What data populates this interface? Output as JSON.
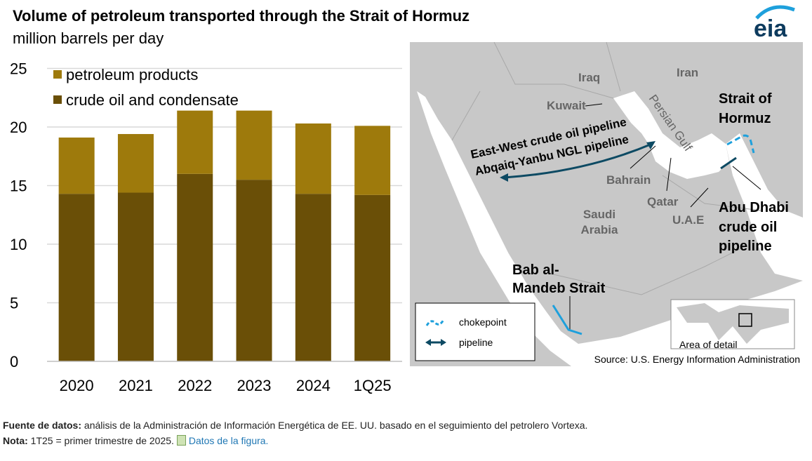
{
  "title": "Volume of petroleum transported through the Strait of Hormuz",
  "subtitle": "million barrels per day",
  "logo_text": "eia",
  "chart_data": {
    "type": "bar",
    "stacked": true,
    "categories": [
      "2020",
      "2021",
      "2022",
      "2023",
      "2024",
      "1Q25"
    ],
    "series": [
      {
        "name": "crude oil and condensate",
        "color": "#6a4f07",
        "values": [
          14.3,
          14.4,
          16.0,
          15.5,
          14.3,
          14.2
        ]
      },
      {
        "name": "petroleum products",
        "color": "#9e7a0c",
        "values": [
          4.8,
          5.0,
          5.4,
          5.9,
          6.0,
          5.9
        ]
      }
    ],
    "yticks": [
      "0",
      "5",
      "10",
      "15",
      "20",
      "25"
    ],
    "ylim": [
      0,
      25
    ],
    "grid": true,
    "legend_placement": "top-left"
  },
  "map": {
    "countries": [
      "Iraq",
      "Iran",
      "Kuwait",
      "Bahrain",
      "Qatar",
      "Saudi Arabia",
      "U.A.E"
    ],
    "saudi_line1": "Saudi",
    "saudi_line2": "Arabia",
    "water": "Persian Gulf",
    "pipeline_label1": "East-West crude oil pipeline",
    "pipeline_label2": "Abqaiq-Yanbu NGL pipeline",
    "hormuz1": "Strait of",
    "hormuz2": "Hormuz",
    "abudhabi1": "Abu Dhabi",
    "abudhabi2": "crude oil",
    "abudhabi3": "pipeline",
    "bab1": "Bab al-",
    "bab2": "Mandeb Strait",
    "legend_chokepoint": "chokepoint",
    "legend_pipeline": "pipeline",
    "inset_label": "Area of detail",
    "source": "Source: U.S. Energy Information Administration",
    "chokepoint_color": "#1ea0dc",
    "pipeline_color": "#0d4a63"
  },
  "footer": {
    "source_label": "Fuente de datos:",
    "source_text": " análisis de la Administración de Información Energética de EE. UU. basado en el seguimiento del petrolero Vortexa.",
    "note_label": "Nota:",
    "note_text": " 1T25 = primer trimestre de 2025. ",
    "link_text": "Datos de la figura."
  }
}
